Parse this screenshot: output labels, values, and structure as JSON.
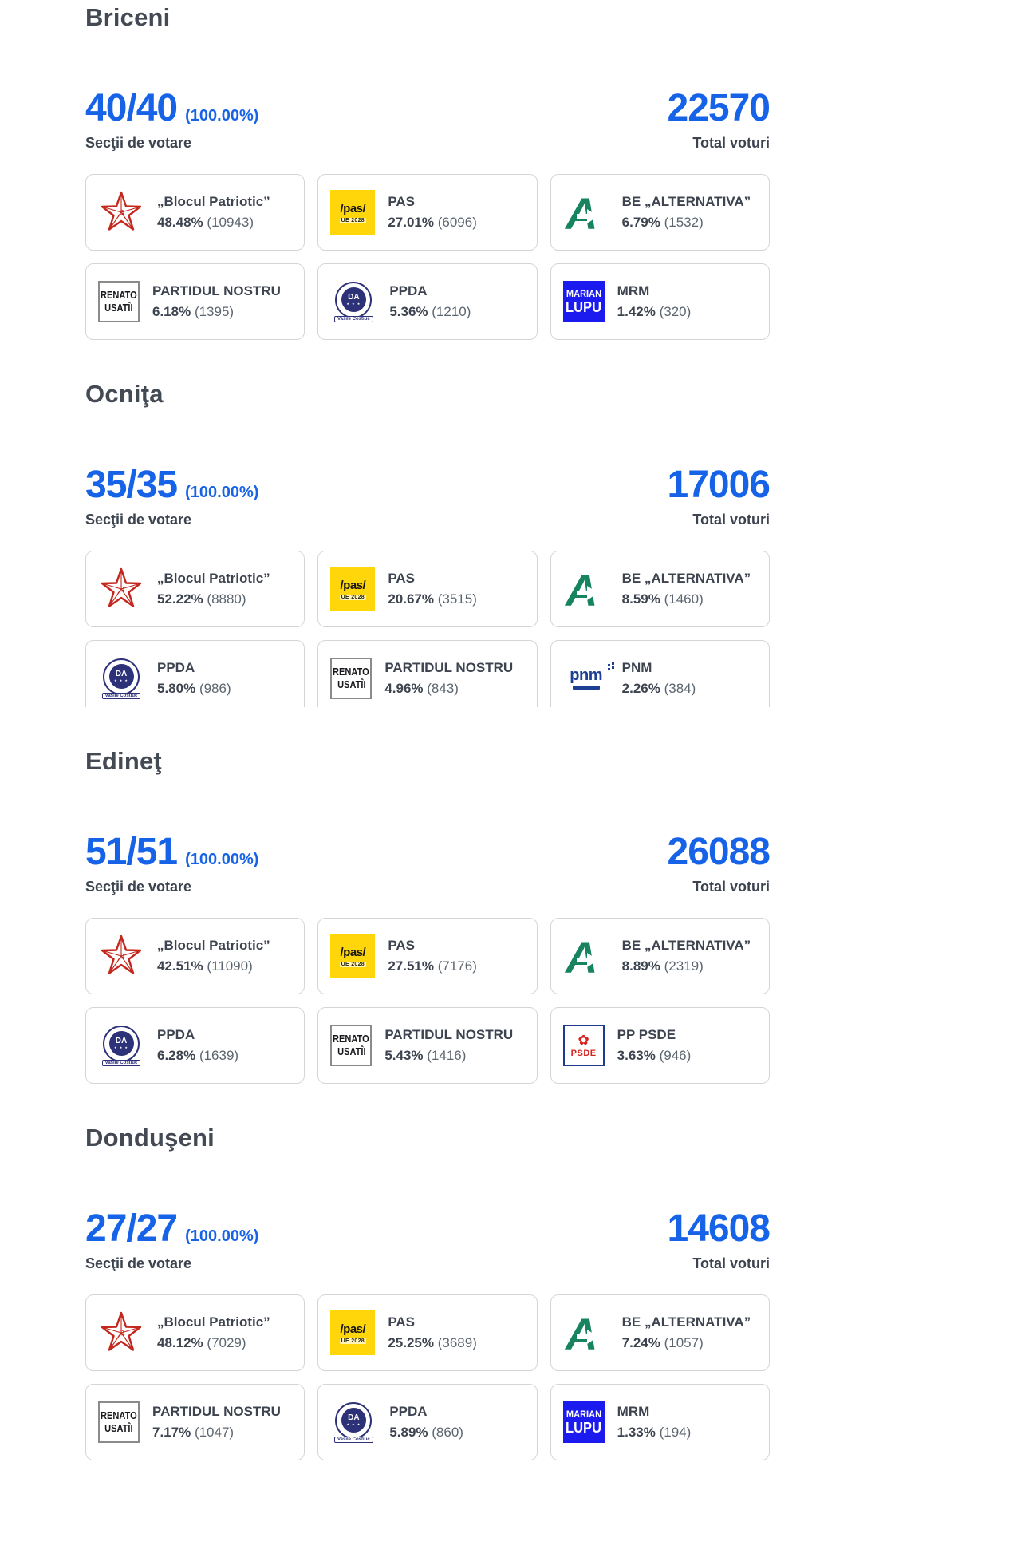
{
  "page": {
    "stations_label": "Secţii de votare",
    "total_label": "Total voturi"
  },
  "colors": {
    "accent_blue": "#1763e8",
    "title_gray": "#434a54",
    "votes_gray": "#5c6670",
    "pas_yellow": "#ffd60a",
    "alternativa_green": "#17845f",
    "blocul_red": "#c3271d",
    "lupu_blue": "#1b1bf0",
    "ppda_navy": "#2c3178",
    "pnm_navy": "#1d3f94",
    "psde_red": "#d6231f"
  },
  "logos": {
    "star_symbol": "☭",
    "pas_line1": "/pas/",
    "pas_line2": "UE 2028",
    "alternativa_letter": "A",
    "usatii_line1": "RENATO",
    "usatii_line2": "USATÎI",
    "lupu_line1": "MARIAN",
    "lupu_line2": "LUPU",
    "ppda_da": "DA",
    "ppda_stars": "★ ★ ★",
    "ppda_banner": "Vasile Costiuc",
    "pnm_text": "pnm",
    "psde_flower": "✿",
    "psde_text": "PSDE"
  },
  "sections": [
    {
      "title": "Briceni",
      "stations": "40/40",
      "stations_pct": "(100.00%)",
      "total": "22570",
      "row2_clipped": false,
      "results": [
        {
          "party": "„Blocul Patriotic”",
          "pct": "48.48%",
          "votes": "(10943)",
          "logo": "blocul-patriotic-star"
        },
        {
          "party": "PAS",
          "pct": "27.01%",
          "votes": "(6096)",
          "logo": "pas"
        },
        {
          "party": "BE „ALTERNATIVA”",
          "pct": "6.79%",
          "votes": "(1532)",
          "logo": "alternativa"
        },
        {
          "party": "PARTIDUL NOSTRU",
          "pct": "6.18%",
          "votes": "(1395)",
          "logo": "renato-usatii"
        },
        {
          "party": "PPDA",
          "pct": "5.36%",
          "votes": "(1210)",
          "logo": "ppda"
        },
        {
          "party": "MRM",
          "pct": "1.42%",
          "votes": "(320)",
          "logo": "marian-lupu"
        }
      ]
    },
    {
      "title": "Ocniţa",
      "stations": "35/35",
      "stations_pct": "(100.00%)",
      "total": "17006",
      "row2_clipped": true,
      "results": [
        {
          "party": "„Blocul Patriotic”",
          "pct": "52.22%",
          "votes": "(8880)",
          "logo": "blocul-patriotic-star"
        },
        {
          "party": "PAS",
          "pct": "20.67%",
          "votes": "(3515)",
          "logo": "pas"
        },
        {
          "party": "BE „ALTERNATIVA”",
          "pct": "8.59%",
          "votes": "(1460)",
          "logo": "alternativa"
        },
        {
          "party": "PPDA",
          "pct": "5.80%",
          "votes": "(986)",
          "logo": "ppda"
        },
        {
          "party": "PARTIDUL NOSTRU",
          "pct": "4.96%",
          "votes": "(843)",
          "logo": "renato-usatii"
        },
        {
          "party": "PNM",
          "pct": "2.26%",
          "votes": "(384)",
          "logo": "pnm"
        }
      ]
    },
    {
      "title": "Edineţ",
      "stations": "51/51",
      "stations_pct": "(100.00%)",
      "total": "26088",
      "row2_clipped": false,
      "results": [
        {
          "party": "„Blocul Patriotic”",
          "pct": "42.51%",
          "votes": "(11090)",
          "logo": "blocul-patriotic-star"
        },
        {
          "party": "PAS",
          "pct": "27.51%",
          "votes": "(7176)",
          "logo": "pas"
        },
        {
          "party": "BE „ALTERNATIVA”",
          "pct": "8.89%",
          "votes": "(2319)",
          "logo": "alternativa"
        },
        {
          "party": "PPDA",
          "pct": "6.28%",
          "votes": "(1639)",
          "logo": "ppda"
        },
        {
          "party": "PARTIDUL NOSTRU",
          "pct": "5.43%",
          "votes": "(1416)",
          "logo": "renato-usatii"
        },
        {
          "party": "PP PSDE",
          "pct": "3.63%",
          "votes": "(946)",
          "logo": "psde"
        }
      ]
    },
    {
      "title": "Donduşeni",
      "stations": "27/27",
      "stations_pct": "(100.00%)",
      "total": "14608",
      "row2_clipped": false,
      "results": [
        {
          "party": "„Blocul Patriotic”",
          "pct": "48.12%",
          "votes": "(7029)",
          "logo": "blocul-patriotic-star"
        },
        {
          "party": "PAS",
          "pct": "25.25%",
          "votes": "(3689)",
          "logo": "pas"
        },
        {
          "party": "BE „ALTERNATIVA”",
          "pct": "7.24%",
          "votes": "(1057)",
          "logo": "alternativa"
        },
        {
          "party": "PARTIDUL NOSTRU",
          "pct": "7.17%",
          "votes": "(1047)",
          "logo": "renato-usatii"
        },
        {
          "party": "PPDA",
          "pct": "5.89%",
          "votes": "(860)",
          "logo": "ppda"
        },
        {
          "party": "MRM",
          "pct": "1.33%",
          "votes": "(194)",
          "logo": "marian-lupu"
        }
      ]
    }
  ]
}
